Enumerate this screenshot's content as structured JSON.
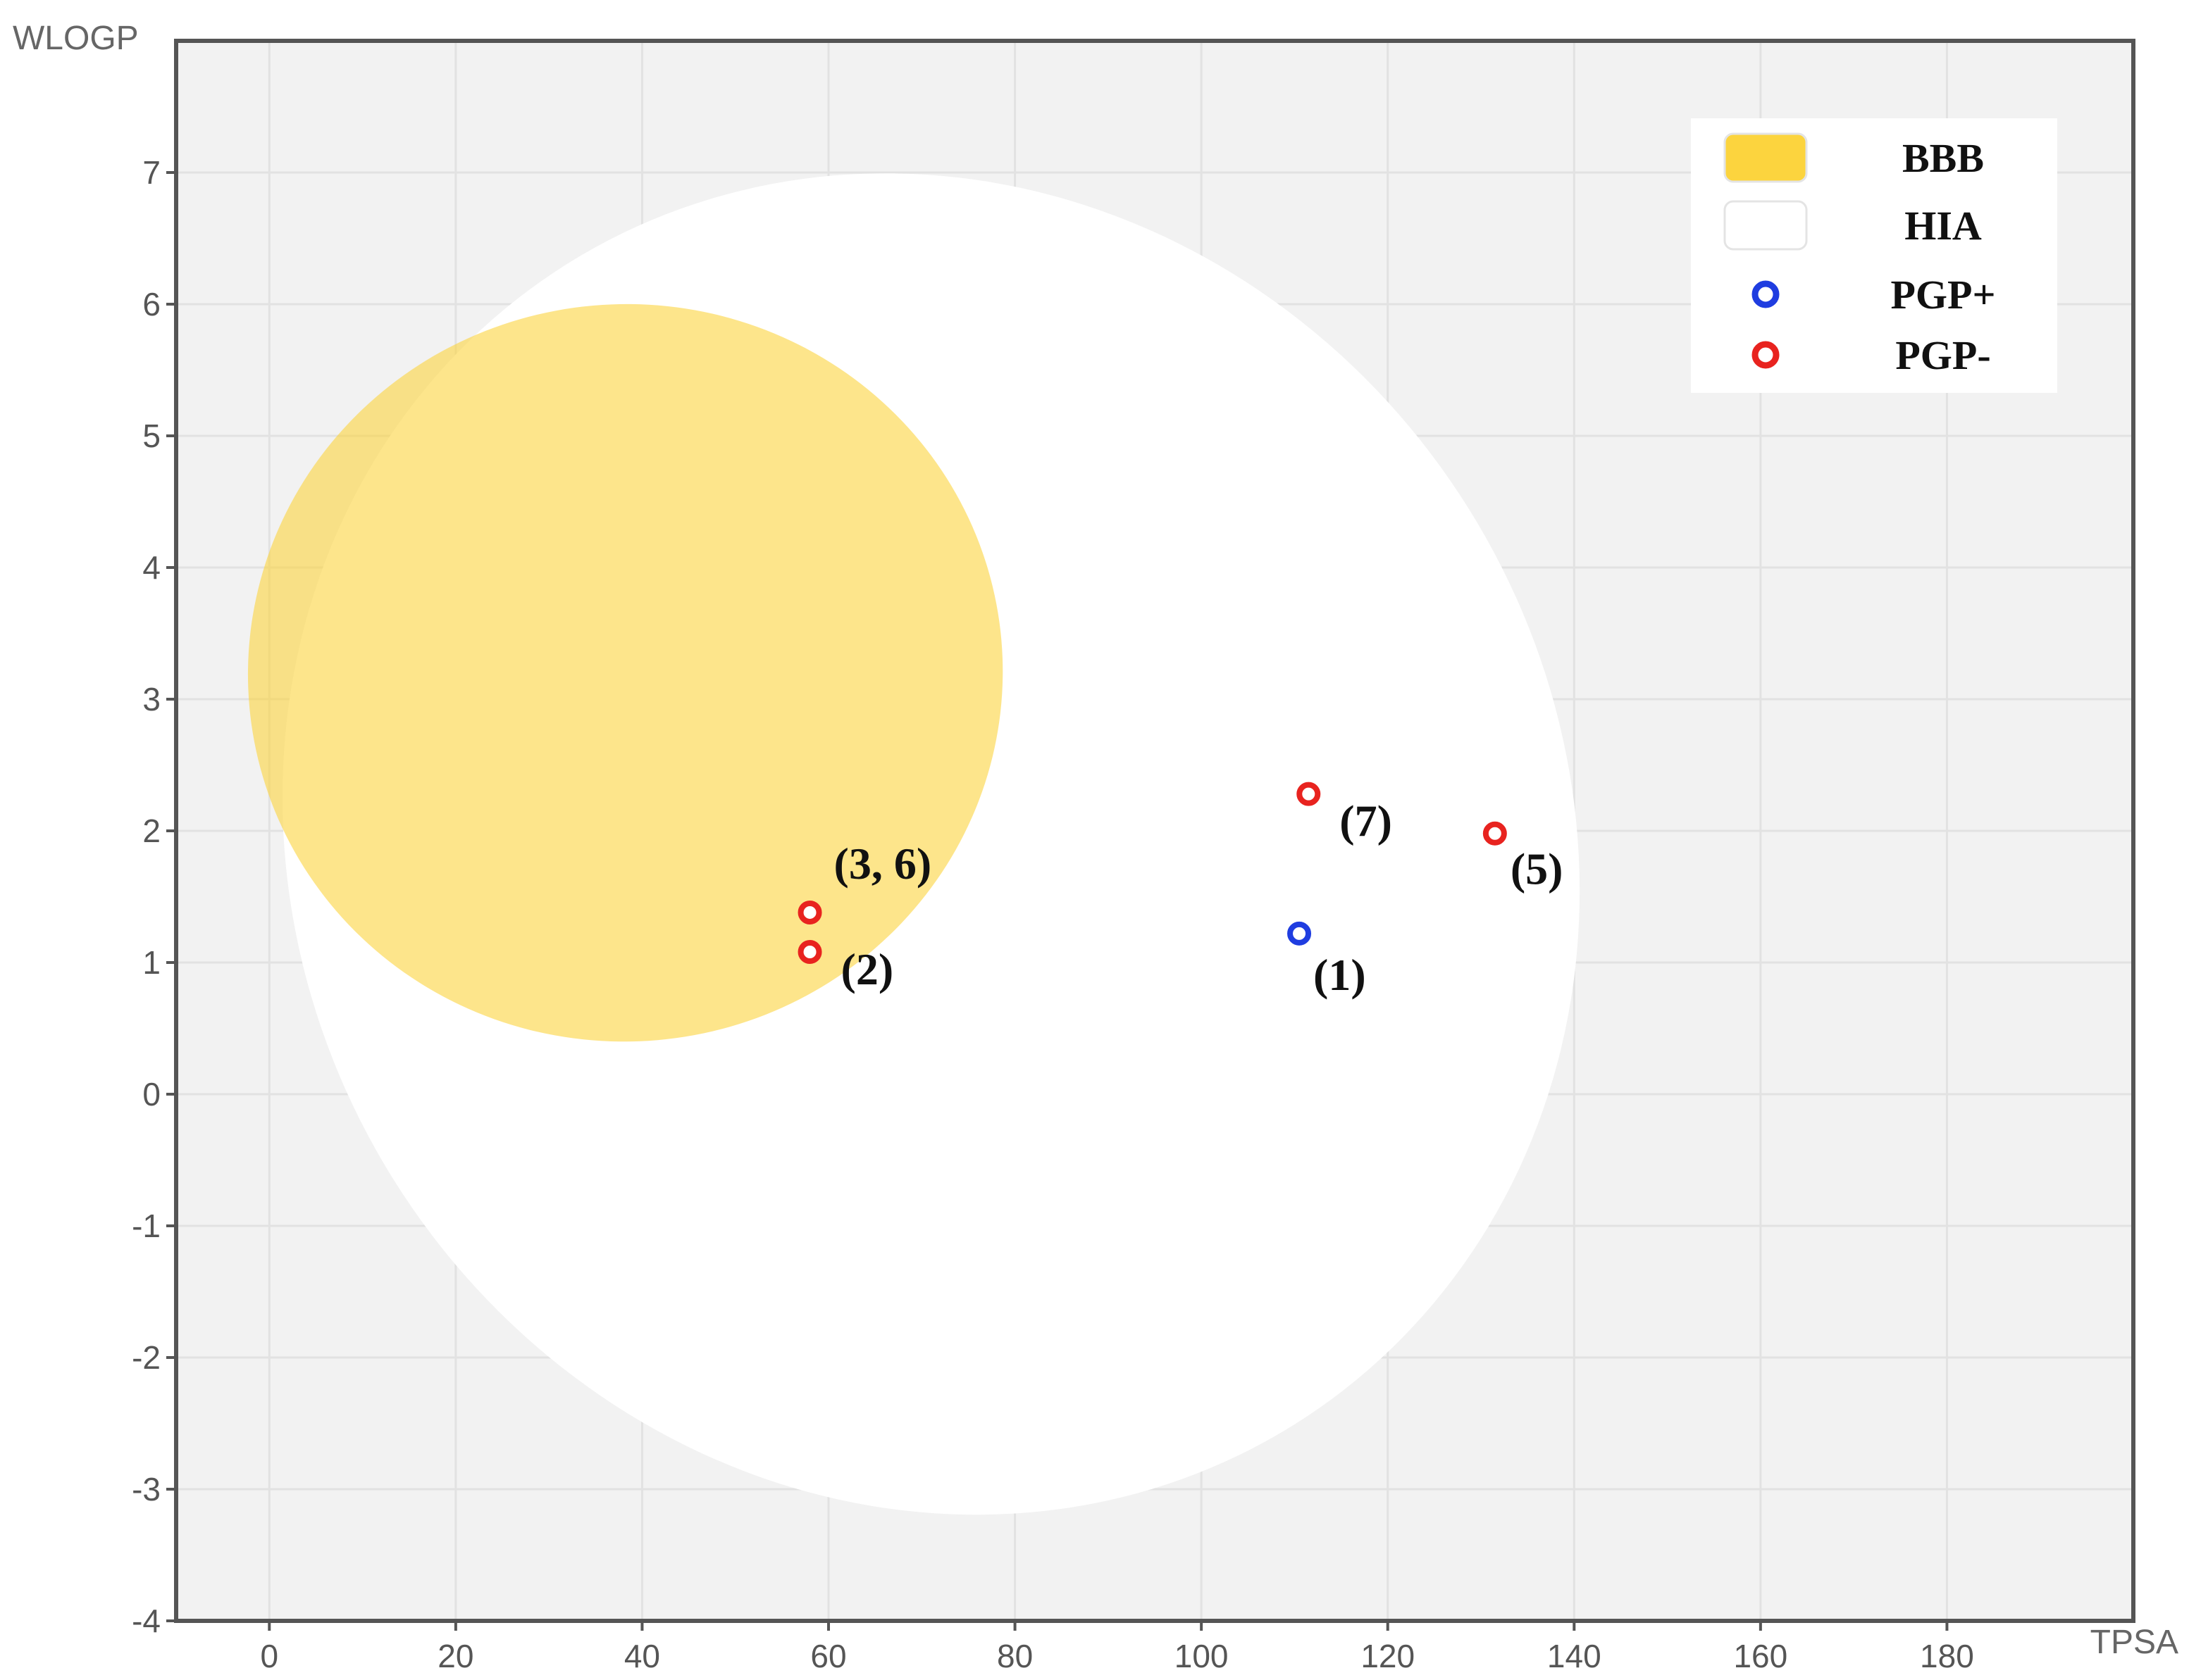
{
  "chart_data": {
    "type": "scatter",
    "title": "",
    "xlabel": "TPSA",
    "ylabel": "WLOGP",
    "xlim": [
      -10,
      200
    ],
    "ylim": [
      -4,
      8
    ],
    "xticks": [
      0,
      20,
      40,
      60,
      80,
      100,
      120,
      140,
      160,
      180
    ],
    "yticks": [
      -4,
      -3,
      -2,
      -1,
      0,
      1,
      2,
      3,
      4,
      5,
      6,
      7
    ],
    "grid": true,
    "legend_position": "top-right",
    "legend": [
      {
        "label": "BBB",
        "kind": "swatch",
        "color": "#fcd43e"
      },
      {
        "label": "HIA",
        "kind": "swatch",
        "color": "#ffffff"
      },
      {
        "label": "PGP+",
        "kind": "circle",
        "color": "#1f3de0"
      },
      {
        "label": "PGP-",
        "kind": "circle",
        "color": "#e8231f"
      }
    ],
    "regions": [
      {
        "name": "HIA",
        "color": "#ffffff",
        "shape": "ellipse",
        "center": [
          71,
          1.9
        ],
        "semi_axes": [
          68,
          5.2
        ],
        "rotation_deg": -32
      },
      {
        "name": "BBB",
        "color": "#fcd43e",
        "opacity": 0.6,
        "shape": "ellipse",
        "center": [
          38.2,
          3.2
        ],
        "semi_axes": [
          40.5,
          2.8
        ],
        "rotation_deg": -5
      }
    ],
    "points": [
      {
        "x": 58,
        "y": 1.38,
        "class": "PGP-",
        "color": "#e8231f",
        "label": "(3, 6)"
      },
      {
        "x": 58,
        "y": 1.08,
        "class": "PGP-",
        "color": "#e8231f",
        "label": "(2)"
      },
      {
        "x": 110.5,
        "y": 1.22,
        "class": "PGP+",
        "color": "#1f3de0",
        "label": "(1)"
      },
      {
        "x": 111.5,
        "y": 2.28,
        "class": "PGP-",
        "color": "#e8231f",
        "label": "(7)"
      },
      {
        "x": 131.5,
        "y": 1.98,
        "class": "PGP-",
        "color": "#e8231f",
        "label": "(5)"
      }
    ]
  }
}
